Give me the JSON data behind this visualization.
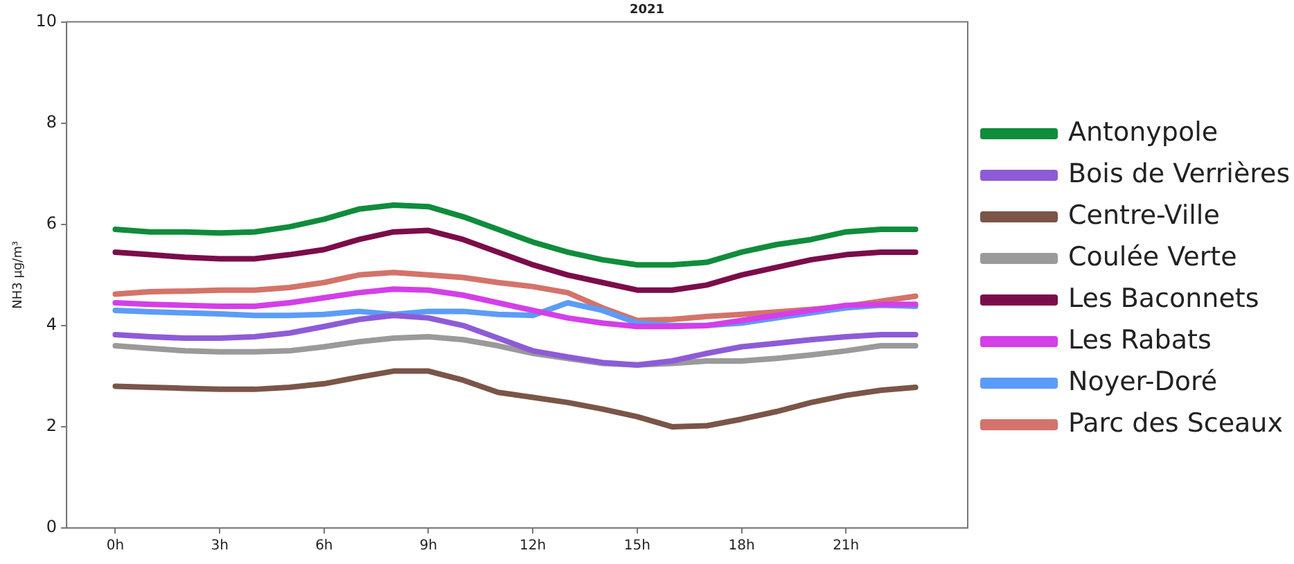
{
  "chart_data": {
    "type": "line",
    "title": "2021",
    "ylabel": "NH3 µg/m³",
    "x": [
      0,
      1,
      2,
      3,
      4,
      5,
      6,
      7,
      8,
      9,
      10,
      11,
      12,
      13,
      14,
      15,
      16,
      17,
      18,
      19,
      20,
      21,
      22,
      23
    ],
    "xlim": [
      -1.4,
      24.5
    ],
    "xticks": [
      {
        "value": 0,
        "label": "0h"
      },
      {
        "value": 3,
        "label": "3h"
      },
      {
        "value": 6,
        "label": "6h"
      },
      {
        "value": 9,
        "label": "9h"
      },
      {
        "value": 12,
        "label": "12h"
      },
      {
        "value": 15,
        "label": "15h"
      },
      {
        "value": 18,
        "label": "18h"
      },
      {
        "value": 21,
        "label": "21h"
      }
    ],
    "ylim": [
      0,
      10
    ],
    "yticks": [
      0,
      2,
      4,
      6,
      8,
      10
    ],
    "grid": false,
    "legend": "right",
    "marker": "none",
    "line_style": "solid",
    "series": [
      {
        "name": "Antonypole",
        "color": "#0f8c3c",
        "values": [
          5.9,
          5.85,
          5.85,
          5.83,
          5.85,
          5.95,
          6.1,
          6.3,
          6.38,
          6.35,
          6.15,
          5.9,
          5.65,
          5.45,
          5.3,
          5.2,
          5.2,
          5.25,
          5.45,
          5.6,
          5.7,
          5.85,
          5.9,
          5.9
        ]
      },
      {
        "name": "Bois de Verrières",
        "color": "#8e5bd8",
        "values": [
          3.82,
          3.78,
          3.75,
          3.75,
          3.78,
          3.85,
          3.98,
          4.12,
          4.2,
          4.15,
          4.0,
          3.75,
          3.5,
          3.38,
          3.27,
          3.22,
          3.3,
          3.45,
          3.58,
          3.65,
          3.72,
          3.78,
          3.82,
          3.82
        ]
      },
      {
        "name": "Centre-Ville",
        "color": "#7a5548",
        "values": [
          2.8,
          2.78,
          2.76,
          2.74,
          2.74,
          2.78,
          2.85,
          2.98,
          3.1,
          3.1,
          2.92,
          2.68,
          2.58,
          2.48,
          2.35,
          2.2,
          2.0,
          2.02,
          2.15,
          2.3,
          2.48,
          2.62,
          2.72,
          2.78
        ]
      },
      {
        "name": "Coulée Verte",
        "color": "#9a9a9a",
        "values": [
          3.6,
          3.55,
          3.5,
          3.48,
          3.48,
          3.5,
          3.58,
          3.68,
          3.75,
          3.78,
          3.72,
          3.6,
          3.45,
          3.35,
          3.25,
          3.22,
          3.25,
          3.3,
          3.3,
          3.35,
          3.42,
          3.5,
          3.6,
          3.6
        ]
      },
      {
        "name": "Les Baconnets",
        "color": "#7b0c4a",
        "values": [
          5.45,
          5.4,
          5.35,
          5.32,
          5.32,
          5.4,
          5.5,
          5.7,
          5.85,
          5.88,
          5.7,
          5.45,
          5.2,
          5.0,
          4.85,
          4.7,
          4.7,
          4.8,
          5.0,
          5.15,
          5.3,
          5.4,
          5.45,
          5.45
        ]
      },
      {
        "name": "Les Rabats",
        "color": "#d43fe8",
        "values": [
          4.45,
          4.42,
          4.4,
          4.38,
          4.38,
          4.45,
          4.55,
          4.65,
          4.72,
          4.7,
          4.6,
          4.45,
          4.3,
          4.15,
          4.05,
          3.98,
          3.98,
          4.0,
          4.1,
          4.2,
          4.3,
          4.4,
          4.42,
          4.42
        ]
      },
      {
        "name": "Noyer-Doré",
        "color": "#5b9cf8",
        "values": [
          4.3,
          4.27,
          4.25,
          4.23,
          4.2,
          4.2,
          4.22,
          4.28,
          4.22,
          4.28,
          4.28,
          4.22,
          4.2,
          4.45,
          4.3,
          4.05,
          4.0,
          4.0,
          4.05,
          4.15,
          4.25,
          4.35,
          4.4,
          4.38
        ]
      },
      {
        "name": "Parc des Sceaux",
        "color": "#d4736a",
        "values": [
          4.62,
          4.67,
          4.68,
          4.7,
          4.7,
          4.75,
          4.85,
          5.0,
          5.05,
          5.0,
          4.95,
          4.85,
          4.77,
          4.65,
          4.35,
          4.1,
          4.12,
          4.18,
          4.22,
          4.27,
          4.32,
          4.38,
          4.48,
          4.58
        ]
      }
    ]
  }
}
